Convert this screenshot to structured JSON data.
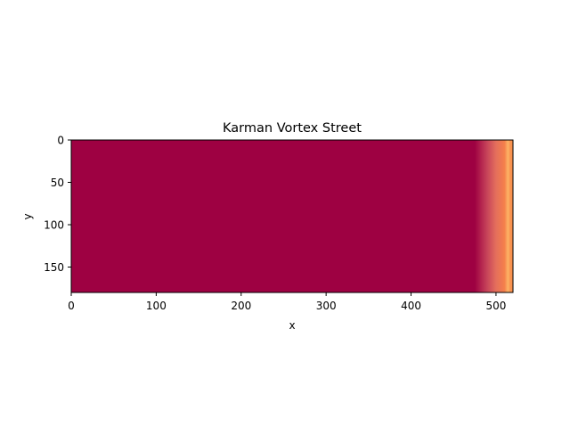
{
  "chart_data": {
    "type": "heatmap",
    "title": "Karman Vortex Street",
    "xlabel": "x",
    "ylabel": "y",
    "xlim": [
      0,
      520
    ],
    "ylim": [
      180,
      0
    ],
    "x_ticks": [
      0,
      100,
      200,
      300,
      400,
      500
    ],
    "y_ticks": [
      0,
      50,
      100,
      150
    ],
    "grid": false,
    "colormap": "Spectral",
    "field_profile": [
      {
        "x": 0,
        "color": "#9e0142"
      },
      {
        "x": 475,
        "color": "#9e0142"
      },
      {
        "x": 490,
        "color": "#c8465a"
      },
      {
        "x": 500,
        "color": "#e46f5c"
      },
      {
        "x": 510,
        "color": "#f57f4b"
      },
      {
        "x": 514,
        "color": "#fdb365"
      },
      {
        "x": 517,
        "color": "#f8924f"
      },
      {
        "x": 520,
        "color": "#f8924f"
      }
    ]
  }
}
